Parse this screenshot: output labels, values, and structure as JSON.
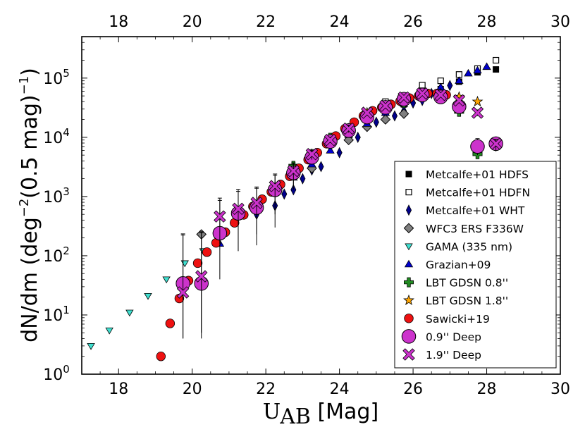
{
  "chart_data": {
    "type": "scatter",
    "xlabel_main": "U",
    "xlabel_sub": "AB",
    "xlabel_rest": " [Mag]",
    "ylabel_pre": "dN/dm (deg",
    "ylabel_sup1": "−2",
    "ylabel_mid": "(0.5 mag)",
    "ylabel_sup2": "−1",
    "ylabel_post": ")",
    "xlim": [
      17,
      30
    ],
    "ylim_log10": [
      0,
      5.7
    ],
    "y_scale": "log",
    "xticks": [
      18,
      20,
      22,
      24,
      26,
      28,
      30
    ],
    "top_axis_ticks": [
      18,
      20,
      22,
      24,
      26,
      28,
      30
    ],
    "yticks": [
      {
        "base": "10",
        "exp": "0"
      },
      {
        "base": "10",
        "exp": "1"
      },
      {
        "base": "10",
        "exp": "2"
      },
      {
        "base": "10",
        "exp": "3"
      },
      {
        "base": "10",
        "exp": "4"
      },
      {
        "base": "10",
        "exp": "5"
      }
    ],
    "grid": false,
    "legend_position": "lower-right",
    "series": [
      {
        "name": "Metcalfe+01 HDFS",
        "marker": "square",
        "color": "#000000",
        "edge": "#000000",
        "points": [
          [
            25.25,
            26000.0
          ],
          [
            25.75,
            36000.0
          ],
          [
            26.25,
            50000.0
          ],
          [
            26.75,
            65000.0
          ],
          [
            27.25,
            87000.0
          ],
          [
            27.75,
            125000.0
          ],
          [
            28.25,
            140000.0
          ]
        ]
      },
      {
        "name": "Metcalfe+01 HDFN",
        "marker": "square-open",
        "color": "#ffffff",
        "edge": "#000000",
        "points": [
          [
            25.25,
            40000.0
          ],
          [
            25.75,
            44000.0
          ],
          [
            26.25,
            76000.0
          ],
          [
            26.75,
            90000.0
          ],
          [
            27.25,
            115000.0
          ],
          [
            27.75,
            145000.0
          ],
          [
            28.25,
            200000.0
          ]
        ]
      },
      {
        "name": "Metcalfe+01 WHT",
        "marker": "thin-diamond",
        "color": "#00008b",
        "edge": "#000000",
        "points": [
          [
            21.75,
            500
          ],
          [
            22.25,
            700
          ],
          [
            22.5,
            1100
          ],
          [
            22.75,
            1300
          ],
          [
            23.0,
            2000
          ],
          [
            23.25,
            2800
          ],
          [
            23.5,
            3200
          ],
          [
            24.0,
            5500
          ],
          [
            24.5,
            10000
          ],
          [
            25.0,
            18000
          ],
          [
            25.5,
            23000
          ],
          [
            25.75,
            28000
          ],
          [
            26.0,
            38000
          ],
          [
            26.25,
            42000
          ],
          [
            26.5,
            55000
          ],
          [
            26.75,
            65000
          ],
          [
            27.0,
            75000
          ]
        ]
      },
      {
        "name": "WFC3 ERS F336W",
        "marker": "diamond",
        "color": "#808080",
        "edge": "#000000",
        "points": [
          [
            20.25,
            230
          ],
          [
            23.25,
            3000
          ],
          [
            24.25,
            9000
          ],
          [
            24.75,
            15000
          ],
          [
            25.25,
            20000
          ],
          [
            25.75,
            25000
          ]
        ]
      },
      {
        "name": "GAMA (335 nm)",
        "marker": "triangle-down",
        "color": "#40e0d0",
        "edge": "#000000",
        "points": [
          [
            17.25,
            3.0
          ],
          [
            17.75,
            5.5
          ],
          [
            18.3,
            11
          ],
          [
            18.8,
            21
          ],
          [
            19.3,
            40
          ],
          [
            19.8,
            75
          ],
          [
            20.3,
            120
          ]
        ]
      },
      {
        "name": "Grazian+09",
        "marker": "triangle-up",
        "color": "#0000cd",
        "edge": "#000000",
        "points": [
          [
            20.75,
            160
          ],
          [
            21.25,
            470
          ],
          [
            21.75,
            700
          ],
          [
            22.25,
            1200
          ],
          [
            22.75,
            2100
          ],
          [
            23.25,
            3500
          ],
          [
            23.75,
            6000
          ],
          [
            24.25,
            11000
          ],
          [
            24.75,
            17000
          ],
          [
            25.25,
            26000
          ],
          [
            25.75,
            37000
          ],
          [
            26.25,
            52000
          ],
          [
            26.75,
            70000
          ],
          [
            27.25,
            90000
          ],
          [
            27.5,
            120000
          ],
          [
            27.75,
            135000
          ],
          [
            28.0,
            155000
          ]
        ]
      },
      {
        "name": "LBT GDSN 0.8''",
        "marker": "plus",
        "color": "#228b22",
        "edge": "#000000",
        "points": [
          [
            22.75,
            3300
          ],
          [
            23.25,
            4800
          ],
          [
            23.75,
            9800
          ],
          [
            24.25,
            12000
          ],
          [
            24.75,
            24000
          ],
          [
            25.25,
            30000
          ],
          [
            25.75,
            38000
          ],
          [
            26.25,
            48000
          ],
          [
            26.75,
            48000
          ],
          [
            27.25,
            27000
          ],
          [
            27.75,
            5200
          ]
        ]
      },
      {
        "name": "LBT GDSN 1.8''",
        "marker": "star",
        "color": "#ffa500",
        "edge": "#000000",
        "points": [
          [
            23.25,
            5200
          ],
          [
            23.75,
            9000
          ],
          [
            24.25,
            14000
          ],
          [
            24.75,
            26000
          ],
          [
            25.25,
            35000
          ],
          [
            25.75,
            45000
          ],
          [
            26.25,
            55000
          ],
          [
            26.75,
            55000
          ],
          [
            27.25,
            48000
          ],
          [
            27.75,
            40000
          ]
        ]
      },
      {
        "name": "Sawicki+19",
        "marker": "circle",
        "color": "#ee1111",
        "edge": "#000000",
        "points": [
          [
            19.15,
            2.0
          ],
          [
            19.4,
            7.2
          ],
          [
            19.65,
            19
          ],
          [
            19.9,
            38
          ],
          [
            20.15,
            75
          ],
          [
            20.4,
            115
          ],
          [
            20.65,
            165
          ],
          [
            20.9,
            250
          ],
          [
            21.15,
            360
          ],
          [
            21.4,
            490
          ],
          [
            21.65,
            680
          ],
          [
            21.9,
            900
          ],
          [
            22.15,
            1200
          ],
          [
            22.4,
            1600
          ],
          [
            22.65,
            2200
          ],
          [
            22.9,
            3000
          ],
          [
            23.15,
            4200
          ],
          [
            23.4,
            5500
          ],
          [
            23.65,
            7800
          ],
          [
            23.9,
            10500
          ],
          [
            24.15,
            14000
          ],
          [
            24.4,
            18000
          ],
          [
            24.65,
            23000
          ],
          [
            24.9,
            28000
          ],
          [
            25.15,
            32000
          ],
          [
            25.4,
            36000
          ],
          [
            25.65,
            41000
          ],
          [
            25.9,
            46000
          ],
          [
            26.15,
            50000
          ],
          [
            26.4,
            55000
          ],
          [
            26.65,
            55000
          ],
          [
            26.9,
            52000
          ]
        ]
      },
      {
        "name": "0.9'' Deep",
        "marker": "circle-large",
        "color": "#cc33cc",
        "edge": "#000000",
        "points": [
          [
            19.75,
            34,
            30,
            200
          ],
          [
            20.25,
            34,
            30,
            220
          ],
          [
            20.75,
            240,
            200,
            700
          ],
          [
            21.25,
            520,
            400,
            800
          ],
          [
            21.75,
            650,
            500,
            800
          ],
          [
            22.25,
            1300,
            1000,
            1100
          ],
          [
            22.75,
            2500,
            1200,
            1000
          ],
          [
            23.25,
            4600,
            1000,
            1000
          ],
          [
            23.75,
            8500,
            1000,
            1000
          ],
          [
            24.25,
            13000,
            2000,
            2000
          ],
          [
            24.75,
            22000,
            2000,
            2000
          ],
          [
            25.25,
            32000,
            3000,
            3000
          ],
          [
            25.75,
            44000,
            3000,
            3000
          ],
          [
            26.25,
            52000,
            4000,
            4000
          ],
          [
            26.75,
            48000,
            4000,
            4000
          ],
          [
            27.25,
            33000,
            3000,
            3000
          ],
          [
            27.75,
            7000,
            2000,
            2500
          ],
          [
            28.25,
            7800,
            2000,
            1500
          ]
        ]
      },
      {
        "name": "1.9'' Deep",
        "marker": "x",
        "color": "#cc33cc",
        "edge": "#000000",
        "points": [
          [
            19.75,
            24,
            20,
            200
          ],
          [
            20.25,
            45,
            40,
            200
          ],
          [
            20.75,
            460,
            300,
            400
          ],
          [
            21.25,
            620,
            500,
            600
          ],
          [
            21.75,
            780,
            550,
            600
          ],
          [
            22.25,
            1500,
            1000,
            800
          ],
          [
            22.75,
            2700,
            1200,
            1000
          ],
          [
            23.25,
            5200,
            1000,
            1000
          ],
          [
            23.75,
            9000,
            1000,
            1000
          ],
          [
            24.25,
            14000,
            2000,
            2000
          ],
          [
            24.75,
            26000,
            2000,
            2000
          ],
          [
            25.25,
            34000,
            3000,
            3000
          ],
          [
            25.75,
            47000,
            3000,
            3000
          ],
          [
            26.25,
            55000,
            4000,
            4000
          ],
          [
            26.75,
            52000,
            4000,
            4000
          ],
          [
            27.25,
            42000,
            3000,
            3000
          ],
          [
            27.75,
            26000,
            3000,
            3000
          ],
          [
            28.25,
            7800,
            2000,
            1500
          ]
        ]
      }
    ]
  }
}
